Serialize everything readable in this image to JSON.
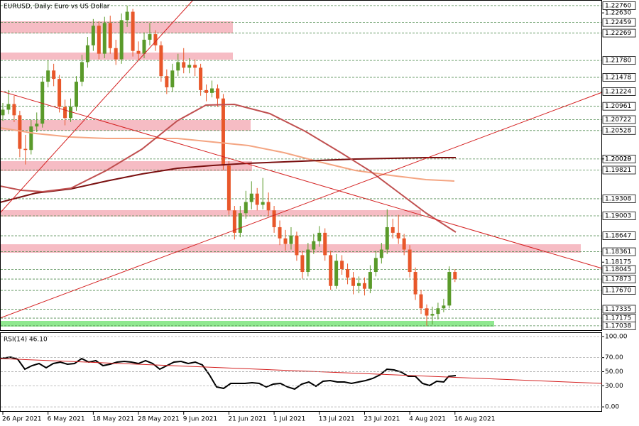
{
  "chart_data": [
    {
      "type": "candlestick",
      "title": "EURUSD, Daily:  Euro vs US Dollar",
      "categories": [
        "26 Apr 2021",
        null,
        null,
        null,
        null,
        null,
        null,
        null,
        "6 May 2021",
        null,
        null,
        null,
        null,
        null,
        null,
        null,
        "18 May 2021",
        null,
        null,
        null,
        null,
        null,
        null,
        null,
        "28 May 2021",
        null,
        null,
        null,
        null,
        null,
        null,
        null,
        "9 Jun 2021",
        null,
        null,
        null,
        null,
        null,
        null,
        null,
        "21 Jun 2021",
        null,
        null,
        null,
        null,
        null,
        null,
        null,
        "1 Jul 2021",
        null,
        null,
        null,
        null,
        null,
        null,
        null,
        "13 Jul 2021",
        null,
        null,
        null,
        null,
        null,
        null,
        null,
        "23 Jul 2021",
        null,
        null,
        null,
        null,
        null,
        null,
        null,
        "4 Aug 2021",
        null,
        null,
        null,
        null,
        null,
        null,
        null,
        "16 Aug 2021"
      ],
      "open": [
        1.208,
        1.209,
        1.21,
        1.208,
        1.202,
        1.2018,
        1.206,
        1.2065,
        1.214,
        1.216,
        1.2145,
        1.2095,
        1.2075,
        1.2095,
        1.214,
        1.2175,
        1.2205,
        1.224,
        1.219,
        1.2245,
        1.22,
        1.218,
        1.225,
        1.2265,
        1.2195,
        1.219,
        1.2215,
        1.2225,
        1.2205,
        1.215,
        1.213,
        1.216,
        1.2175,
        1.2165,
        1.217,
        1.2165,
        1.2125,
        1.212,
        1.2128,
        1.211,
        1.199,
        1.191,
        1.187,
        1.1905,
        1.1925,
        1.194,
        1.192,
        1.1925,
        1.191,
        1.188,
        1.186,
        1.185,
        1.1865,
        1.183,
        1.18,
        1.184,
        1.1855,
        1.187,
        1.183,
        1.1775,
        1.182,
        1.1805,
        1.179,
        1.1775,
        1.178,
        1.177,
        1.18,
        1.1825,
        1.184,
        1.188,
        1.187,
        1.186,
        1.184,
        1.18,
        1.176,
        1.1735,
        1.1722,
        1.1725,
        1.1735,
        1.174,
        1.18
      ],
      "high": [
        1.2102,
        1.2125,
        1.2115,
        1.2088,
        1.2045,
        1.2072,
        1.2085,
        1.215,
        1.2178,
        1.2172,
        1.2152,
        1.2108,
        1.211,
        1.215,
        1.2188,
        1.222,
        1.2252,
        1.2248,
        1.2256,
        1.2258,
        1.2215,
        1.2262,
        1.2276,
        1.227,
        1.2212,
        1.2228,
        1.2245,
        1.2232,
        1.2212,
        1.2162,
        1.2172,
        1.219,
        1.22,
        1.2182,
        1.218,
        1.2172,
        1.2135,
        1.2142,
        1.2135,
        1.2118,
        1.1998,
        1.1918,
        1.1918,
        1.1945,
        1.1962,
        1.195,
        1.1968,
        1.1942,
        1.1918,
        1.1892,
        1.1875,
        1.188,
        1.1872,
        1.1838,
        1.1852,
        1.1868,
        1.1882,
        1.1878,
        1.1838,
        1.1832,
        1.183,
        1.1815,
        1.18,
        1.1792,
        1.179,
        1.1812,
        1.1838,
        1.1852,
        1.1912,
        1.1895,
        1.1902,
        1.1868,
        1.1848,
        1.1808,
        1.1768,
        1.1742,
        1.1738,
        1.1745,
        1.1752,
        1.181,
        1.1805
      ],
      "low": [
        1.207,
        1.2082,
        1.2068,
        1.2005,
        1.1992,
        1.201,
        1.205,
        1.2058,
        1.213,
        1.2132,
        1.2085,
        1.2062,
        1.2068,
        1.2088,
        1.2132,
        1.2165,
        1.2195,
        1.218,
        1.2182,
        1.219,
        1.217,
        1.2172,
        1.2238,
        1.2185,
        1.2178,
        1.2182,
        1.2205,
        1.2195,
        1.214,
        1.2118,
        1.2122,
        1.215,
        1.2155,
        1.2155,
        1.215,
        1.2115,
        1.2105,
        1.2112,
        1.2095,
        1.1982,
        1.1902,
        1.1858,
        1.1862,
        1.1895,
        1.1912,
        1.191,
        1.1912,
        1.19,
        1.187,
        1.1848,
        1.1838,
        1.184,
        1.182,
        1.1788,
        1.1792,
        1.1832,
        1.1845,
        1.182,
        1.1768,
        1.177,
        1.1795,
        1.1778,
        1.176,
        1.1762,
        1.1758,
        1.1762,
        1.1792,
        1.1815,
        1.1832,
        1.186,
        1.185,
        1.183,
        1.179,
        1.175,
        1.1725,
        1.1704,
        1.1706,
        1.1715,
        1.1728,
        1.1735,
        1.1782
      ],
      "close": [
        1.209,
        1.21,
        1.208,
        1.202,
        1.2018,
        1.206,
        1.2065,
        1.214,
        1.216,
        1.2145,
        1.2095,
        1.2075,
        1.2095,
        1.214,
        1.2175,
        1.2205,
        1.224,
        1.219,
        1.2245,
        1.22,
        1.218,
        1.225,
        1.2265,
        1.2195,
        1.219,
        1.2215,
        1.2225,
        1.2205,
        1.215,
        1.213,
        1.216,
        1.2175,
        1.2165,
        1.217,
        1.2165,
        1.2125,
        1.212,
        1.2128,
        1.211,
        1.199,
        1.191,
        1.187,
        1.1905,
        1.1925,
        1.194,
        1.192,
        1.1925,
        1.191,
        1.188,
        1.186,
        1.185,
        1.1865,
        1.183,
        1.18,
        1.184,
        1.1855,
        1.187,
        1.183,
        1.1775,
        1.182,
        1.1805,
        1.179,
        1.1775,
        1.178,
        1.177,
        1.18,
        1.1825,
        1.184,
        1.188,
        1.187,
        1.186,
        1.184,
        1.18,
        1.176,
        1.1735,
        1.1722,
        1.1725,
        1.1735,
        1.174,
        1.18,
        1.17873
      ],
      "up_color": "#5a9a2a",
      "down_color": "#e8572a",
      "ylim": [
        1.1696,
        1.2286
      ],
      "yticks": [
        {
          "value": 1.2263,
          "label": "1.22630"
        },
        {
          "value": 1.2002,
          "label": "1.20020"
        },
        1.18175
      ],
      "levels": [
        {
          "value": 1.2276,
          "label": "1.22760"
        },
        1.22459,
        1.22269,
        {
          "value": 1.2178,
          "label": "1.21780"
        },
        1.21478,
        1.21224,
        1.20961,
        1.20722,
        1.20528,
        1.20019,
        1.19821,
        1.19308,
        1.19003,
        1.18647,
        1.18361,
        1.18045,
        1.17873,
        {
          "value": 1.1767,
          "label": "1.17670"
        },
        1.17335,
        1.17175,
        1.17038
      ],
      "level_color": "#4f8a4f"
    },
    {
      "type": "indicator",
      "title": "RSI(14) 46.10",
      "ylim": [
        -7,
        106
      ],
      "yticks": [
        {
          "value": 100,
          "label": "100.00"
        },
        {
          "value": 70,
          "label": "70.00"
        },
        {
          "value": 50,
          "label": "50.00"
        },
        {
          "value": 30,
          "label": "30.00"
        },
        {
          "value": 0,
          "label": "0.00"
        }
      ]
    }
  ]
}
